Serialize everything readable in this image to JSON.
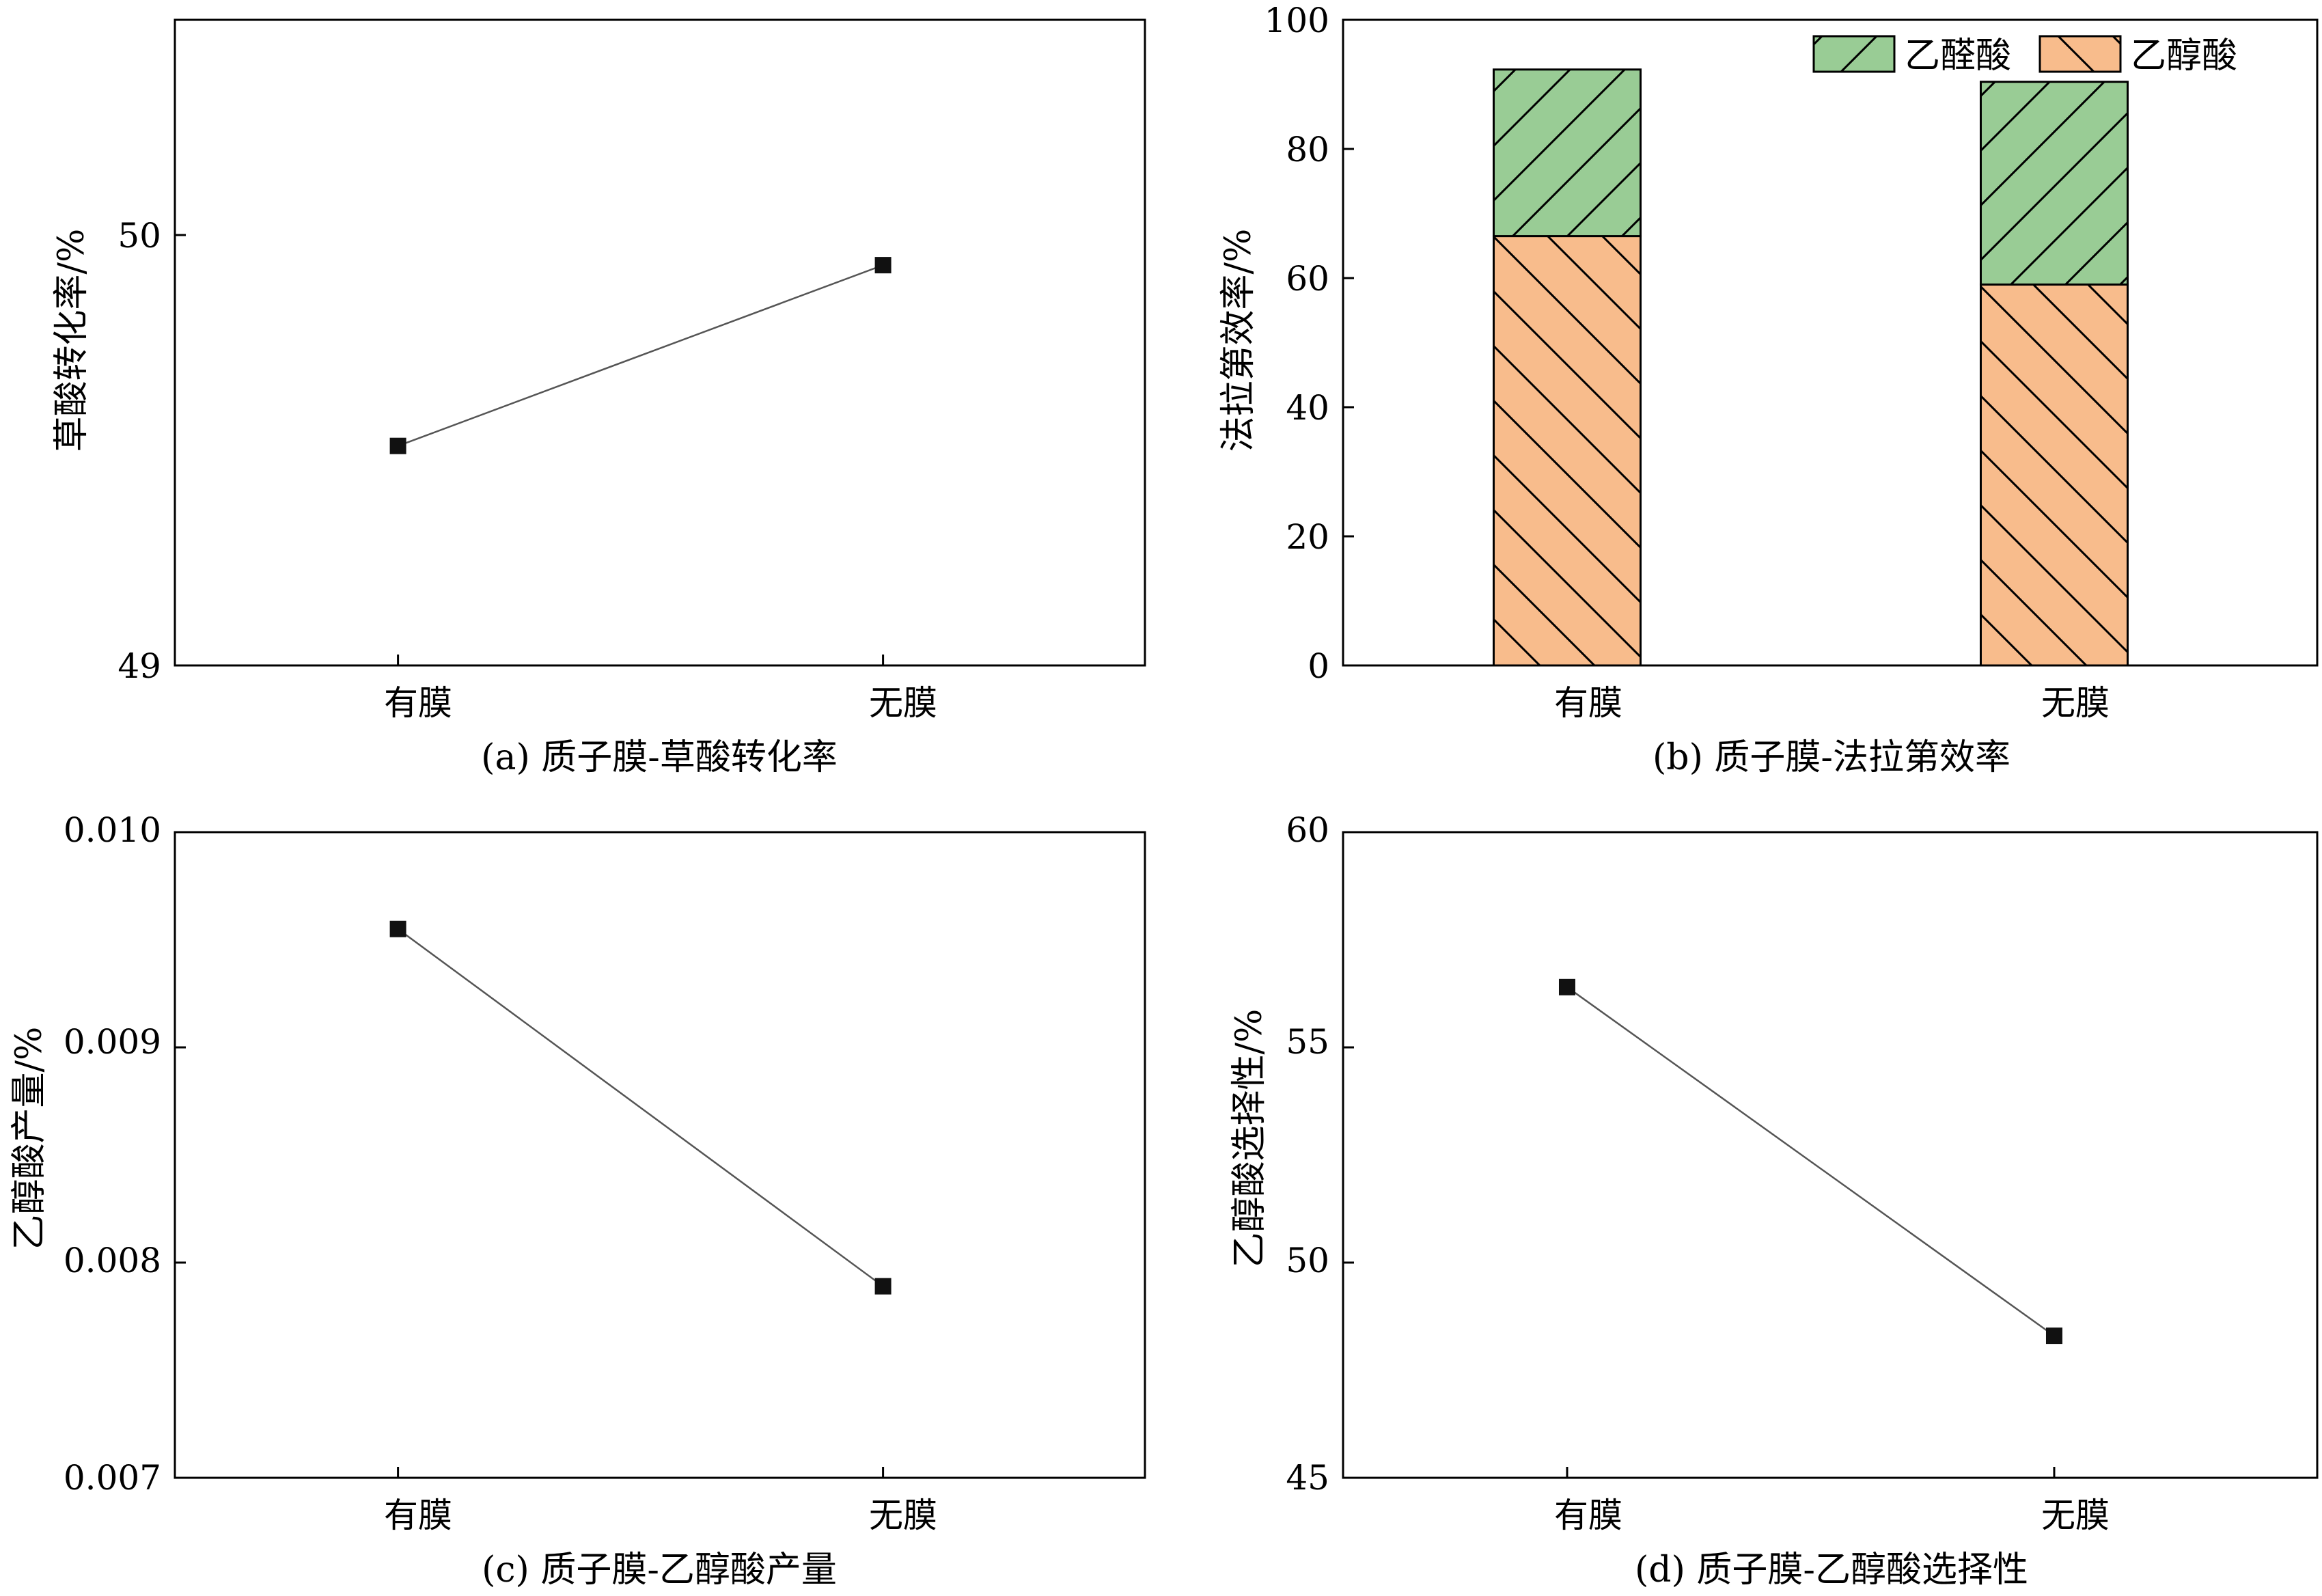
{
  "panels": [
    {
      "caption": "(a) 质子膜-草酸转化率",
      "chart_data": {
        "type": "line",
        "categories": [
          "有膜",
          "无膜"
        ],
        "ylabel": "草酸转化率/%",
        "ylim": [
          49,
          50.5
        ],
        "yticks": [
          "49",
          "50"
        ],
        "series": [
          {
            "values": [
              49.51,
              49.93
            ]
          }
        ],
        "grid": false
      }
    },
    {
      "caption": "(b) 质子膜-法拉第效率",
      "chart_data": {
        "type": "bar",
        "stacked": true,
        "categories": [
          "有膜",
          "无膜"
        ],
        "ylabel": "法拉第效率/%",
        "ylim": [
          0,
          100
        ],
        "yticks": [
          "0",
          "20",
          "40",
          "60",
          "80",
          "100"
        ],
        "series": [
          {
            "name": "乙醇酸",
            "values": [
              66.5,
              59.0
            ],
            "color": "#f8bc8c",
            "hatch": "backslash"
          },
          {
            "name": "乙醛酸",
            "values": [
              25.8,
              31.4
            ],
            "color": "#99cc95",
            "hatch": "slash"
          }
        ],
        "legend": [
          "乙醛酸",
          "乙醇酸"
        ],
        "legend_position": "top-right",
        "grid": false
      }
    },
    {
      "caption": "(c) 质子膜-乙醇酸产量",
      "chart_data": {
        "type": "line",
        "categories": [
          "有膜",
          "无膜"
        ],
        "ylabel": "乙醇酸产量/%",
        "ylim": [
          0.007,
          0.01
        ],
        "yticks": [
          "0.007",
          "0.008",
          "0.009",
          "0.010"
        ],
        "series": [
          {
            "values": [
              0.00955,
              0.00789
            ]
          }
        ],
        "grid": false
      }
    },
    {
      "caption": "(d) 质子膜-乙醇酸选择性",
      "chart_data": {
        "type": "line",
        "categories": [
          "有膜",
          "无膜"
        ],
        "ylabel": "乙醇酸选择性/%",
        "ylim": [
          45,
          60
        ],
        "yticks": [
          "45",
          "50",
          "55",
          "60"
        ],
        "series": [
          {
            "values": [
              56.4,
              48.3
            ]
          }
        ],
        "grid": false
      }
    }
  ]
}
